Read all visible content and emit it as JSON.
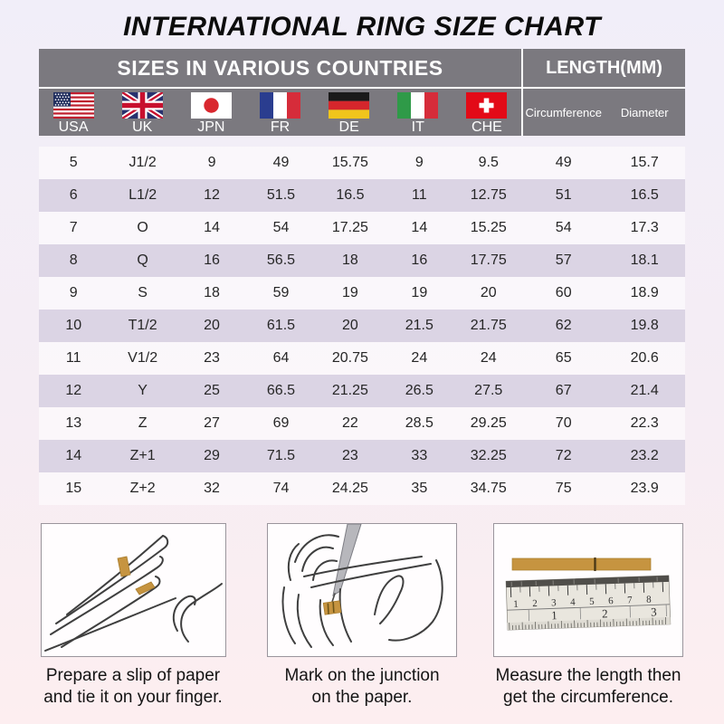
{
  "title": "INTERNATIONAL RING SIZE CHART",
  "colors": {
    "header_gray": "#7b797f",
    "row_alternate": "#dbd4e4",
    "row_base": "#fbf8fb",
    "paper_tan": "#c69440",
    "background_top": "#f1eef9",
    "background_bottom": "#fdeef0"
  },
  "table": {
    "section_left_title": "SIZES IN VARIOUS COUNTRIES",
    "section_right_title": "LENGTH(MM)",
    "countries": [
      {
        "code": "USA",
        "flag": "usa-flag"
      },
      {
        "code": "UK",
        "flag": "uk-flag"
      },
      {
        "code": "JPN",
        "flag": "japan-flag"
      },
      {
        "code": "FR",
        "flag": "france-flag"
      },
      {
        "code": "DE",
        "flag": "germany-flag"
      },
      {
        "code": "IT",
        "flag": "italy-flag"
      },
      {
        "code": "CHE",
        "flag": "switzerland-flag"
      }
    ],
    "length_columns": [
      "Circumference",
      "Diameter"
    ],
    "rows": [
      [
        "5",
        "J1/2",
        "9",
        "49",
        "15.75",
        "9",
        "9.5",
        "49",
        "15.7"
      ],
      [
        "6",
        "L1/2",
        "12",
        "51.5",
        "16.5",
        "11",
        "12.75",
        "51",
        "16.5"
      ],
      [
        "7",
        "O",
        "14",
        "54",
        "17.25",
        "14",
        "15.25",
        "54",
        "17.3"
      ],
      [
        "8",
        "Q",
        "16",
        "56.5",
        "18",
        "16",
        "17.75",
        "57",
        "18.1"
      ],
      [
        "9",
        "S",
        "18",
        "59",
        "19",
        "19",
        "20",
        "60",
        "18.9"
      ],
      [
        "10",
        "T1/2",
        "20",
        "61.5",
        "20",
        "21.5",
        "21.75",
        "62",
        "19.8"
      ],
      [
        "11",
        "V1/2",
        "23",
        "64",
        "20.75",
        "24",
        "24",
        "65",
        "20.6"
      ],
      [
        "12",
        "Y",
        "25",
        "66.5",
        "21.25",
        "26.5",
        "27.5",
        "67",
        "21.4"
      ],
      [
        "13",
        "Z",
        "27",
        "69",
        "22",
        "28.5",
        "29.25",
        "70",
        "22.3"
      ],
      [
        "14",
        "Z+1",
        "29",
        "71.5",
        "23",
        "33",
        "32.25",
        "72",
        "23.2"
      ],
      [
        "15",
        "Z+2",
        "32",
        "74",
        "24.25",
        "35",
        "34.75",
        "75",
        "23.9"
      ]
    ]
  },
  "instructions": [
    {
      "icon": "hand-with-paper-slip",
      "line1": "Prepare a slip of paper",
      "line2": "and tie it on your finger."
    },
    {
      "icon": "pen-marking-paper",
      "line1": "Mark on the junction",
      "line2": "on the paper."
    },
    {
      "icon": "ruler-measuring-strip",
      "line1": "Measure the length then",
      "line2": "get the circumference."
    }
  ],
  "ruler": {
    "top_scale": [
      "1",
      "2",
      "3",
      "4",
      "5",
      "6",
      "7",
      "8"
    ],
    "bottom_scale": [
      "1",
      "2",
      "3"
    ]
  },
  "chart_data": {
    "type": "table",
    "title": "INTERNATIONAL RING SIZE CHART",
    "columns": [
      "USA",
      "UK",
      "JPN",
      "FR",
      "DE",
      "IT",
      "CHE",
      "Circumference (mm)",
      "Diameter (mm)"
    ],
    "rows": [
      [
        "5",
        "J1/2",
        "9",
        "49",
        "15.75",
        "9",
        "9.5",
        "49",
        "15.7"
      ],
      [
        "6",
        "L1/2",
        "12",
        "51.5",
        "16.5",
        "11",
        "12.75",
        "51",
        "16.5"
      ],
      [
        "7",
        "O",
        "14",
        "54",
        "17.25",
        "14",
        "15.25",
        "54",
        "17.3"
      ],
      [
        "8",
        "Q",
        "16",
        "56.5",
        "18",
        "16",
        "17.75",
        "57",
        "18.1"
      ],
      [
        "9",
        "S",
        "18",
        "59",
        "19",
        "19",
        "20",
        "60",
        "18.9"
      ],
      [
        "10",
        "T1/2",
        "20",
        "61.5",
        "20",
        "21.5",
        "21.75",
        "62",
        "19.8"
      ],
      [
        "11",
        "V1/2",
        "23",
        "64",
        "20.75",
        "24",
        "24",
        "65",
        "20.6"
      ],
      [
        "12",
        "Y",
        "25",
        "66.5",
        "21.25",
        "26.5",
        "27.5",
        "67",
        "21.4"
      ],
      [
        "13",
        "Z",
        "27",
        "69",
        "22",
        "28.5",
        "29.25",
        "70",
        "22.3"
      ],
      [
        "14",
        "Z+1",
        "29",
        "71.5",
        "23",
        "33",
        "32.25",
        "72",
        "23.2"
      ],
      [
        "15",
        "Z+2",
        "32",
        "74",
        "24.25",
        "35",
        "34.75",
        "75",
        "23.9"
      ]
    ]
  }
}
